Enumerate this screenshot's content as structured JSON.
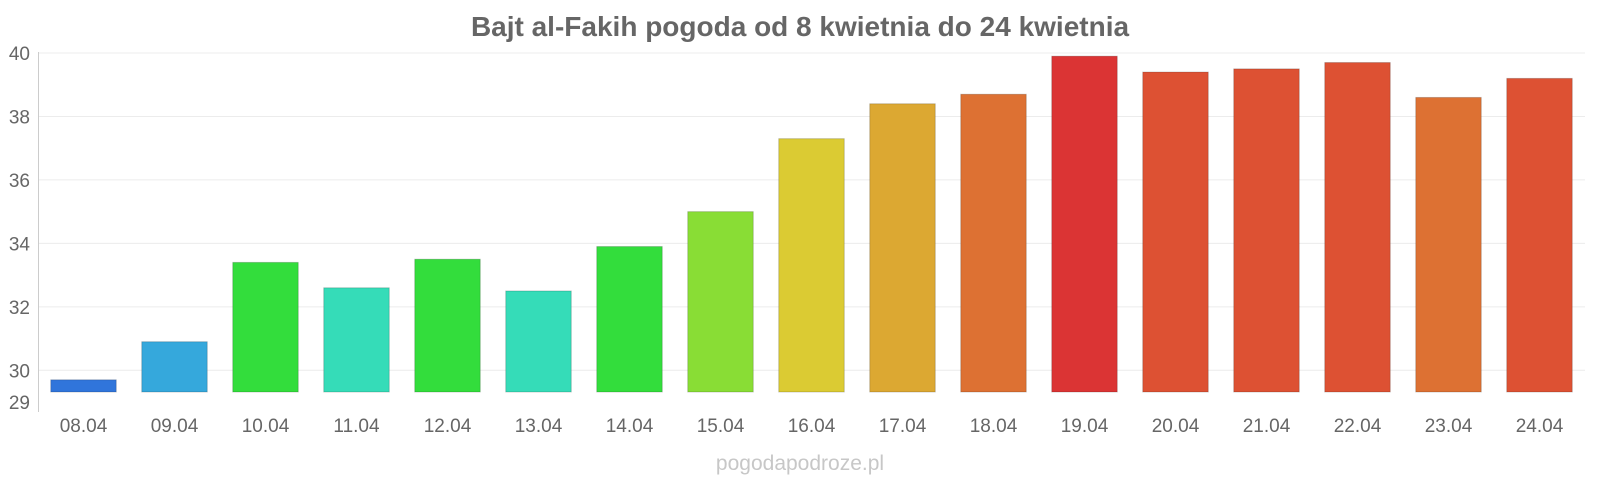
{
  "chart_data": {
    "type": "bar",
    "title": "Bajt al-Fakih pogoda od 8 kwietnia do 24 kwietnia",
    "categories": [
      "08.04",
      "09.04",
      "10.04",
      "11.04",
      "12.04",
      "13.04",
      "14.04",
      "15.04",
      "16.04",
      "17.04",
      "18.04",
      "19.04",
      "20.04",
      "21.04",
      "22.04",
      "23.04",
      "24.04"
    ],
    "values": [
      29.7,
      30.9,
      33.4,
      32.6,
      33.5,
      32.5,
      33.9,
      35.0,
      37.3,
      38.4,
      38.7,
      39.9,
      39.4,
      39.5,
      39.7,
      38.6,
      39.2
    ],
    "colors": [
      "#3075db",
      "#35a8dc",
      "#33dd3c",
      "#35dcb8",
      "#33dd3c",
      "#35dcb8",
      "#33dd3c",
      "#89dd35",
      "#dbcb33",
      "#dca832",
      "#dd7133",
      "#db3434",
      "#dd5133",
      "#dd5133",
      "#dd5133",
      "#dd7133",
      "#dd5133"
    ],
    "ylim": [
      29,
      40
    ],
    "yticks": [
      "29",
      "30",
      "32",
      "34",
      "36",
      "38",
      "40"
    ],
    "grid": true,
    "legend": "none"
  },
  "watermark": "pogodapodroze.pl"
}
